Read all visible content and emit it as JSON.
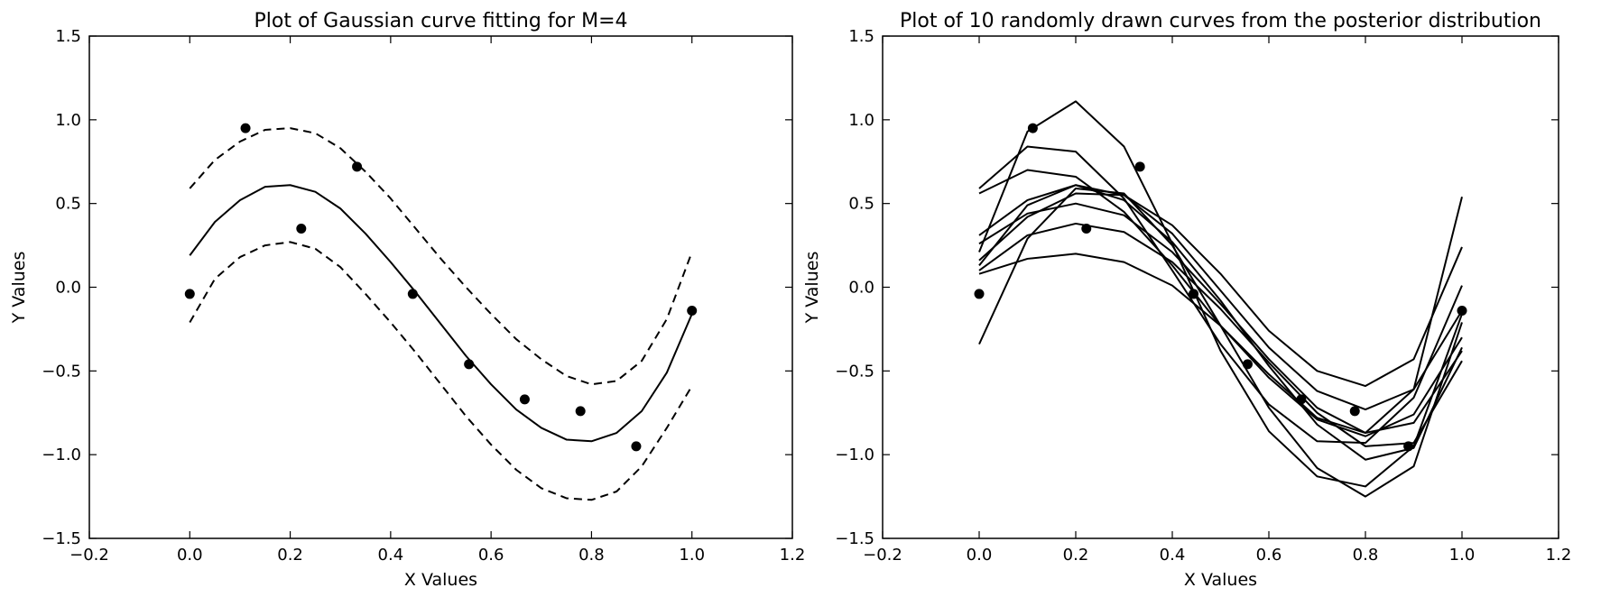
{
  "chart_data": [
    {
      "type": "line",
      "title": "Plot of Gaussian curve fitting for M=4",
      "xlabel": "X Values",
      "ylabel": "Y Values",
      "xlim": [
        -0.2,
        1.2
      ],
      "ylim": [
        -1.5,
        1.5
      ],
      "xticks": [
        -0.2,
        0.0,
        0.2,
        0.4,
        0.6,
        0.8,
        1.0,
        1.2
      ],
      "yticks": [
        -1.5,
        -1.0,
        -0.5,
        0.0,
        0.5,
        1.0,
        1.5
      ],
      "x_tick_labels": [
        "−0.2",
        "0.0",
        "0.2",
        "0.4",
        "0.6",
        "0.8",
        "1.0",
        "1.2"
      ],
      "y_tick_labels": [
        "−1.5",
        "−1.0",
        "−0.5",
        "0.0",
        "0.5",
        "1.0",
        "1.5"
      ],
      "grid": false,
      "points": {
        "x": [
          0.0,
          0.111,
          0.222,
          0.333,
          0.444,
          0.556,
          0.667,
          0.778,
          0.889,
          1.0
        ],
        "y": [
          -0.04,
          0.95,
          0.35,
          0.72,
          -0.04,
          -0.46,
          -0.67,
          -0.74,
          -0.95,
          -0.14
        ]
      },
      "series": [
        {
          "style": "solid",
          "x": [
            0.0,
            0.05,
            0.1,
            0.15,
            0.2,
            0.25,
            0.3,
            0.35,
            0.4,
            0.45,
            0.5,
            0.55,
            0.6,
            0.65,
            0.7,
            0.75,
            0.8,
            0.85,
            0.9,
            0.95,
            1.0
          ],
          "y": [
            0.19,
            0.39,
            0.52,
            0.6,
            0.61,
            0.57,
            0.47,
            0.32,
            0.15,
            -0.03,
            -0.22,
            -0.41,
            -0.58,
            -0.73,
            -0.84,
            -0.91,
            -0.92,
            -0.87,
            -0.74,
            -0.51,
            -0.16
          ]
        },
        {
          "style": "dashed",
          "x": [
            0.0,
            0.05,
            0.1,
            0.15,
            0.2,
            0.25,
            0.3,
            0.35,
            0.4,
            0.45,
            0.5,
            0.55,
            0.6,
            0.65,
            0.7,
            0.75,
            0.8,
            0.85,
            0.9,
            0.95,
            1.0
          ],
          "y": [
            0.59,
            0.76,
            0.87,
            0.94,
            0.95,
            0.92,
            0.83,
            0.69,
            0.53,
            0.35,
            0.17,
            0.0,
            -0.16,
            -0.31,
            -0.43,
            -0.53,
            -0.58,
            -0.56,
            -0.44,
            -0.19,
            0.21
          ]
        },
        {
          "style": "dashed",
          "x": [
            0.0,
            0.05,
            0.1,
            0.15,
            0.2,
            0.25,
            0.3,
            0.35,
            0.4,
            0.45,
            0.5,
            0.55,
            0.6,
            0.65,
            0.7,
            0.75,
            0.8,
            0.85,
            0.9,
            0.95,
            1.0
          ],
          "y": [
            -0.21,
            0.05,
            0.18,
            0.25,
            0.27,
            0.23,
            0.12,
            -0.04,
            -0.21,
            -0.39,
            -0.58,
            -0.77,
            -0.94,
            -1.09,
            -1.2,
            -1.26,
            -1.27,
            -1.22,
            -1.07,
            -0.84,
            -0.59
          ]
        }
      ]
    },
    {
      "type": "line",
      "title": "Plot of 10 randomly drawn curves from the posterior distribution",
      "xlabel": "X Values",
      "ylabel": "Y Values",
      "xlim": [
        -0.2,
        1.2
      ],
      "ylim": [
        -1.5,
        1.5
      ],
      "xticks": [
        -0.2,
        0.0,
        0.2,
        0.4,
        0.6,
        0.8,
        1.0,
        1.2
      ],
      "yticks": [
        -1.5,
        -1.0,
        -0.5,
        0.0,
        0.5,
        1.0,
        1.5
      ],
      "x_tick_labels": [
        "−0.2",
        "0.0",
        "0.2",
        "0.4",
        "0.6",
        "0.8",
        "1.0",
        "1.2"
      ],
      "y_tick_labels": [
        "−1.5",
        "−1.0",
        "−0.5",
        "0.0",
        "0.5",
        "1.0",
        "1.5"
      ],
      "grid": false,
      "points": {
        "x": [
          0.0,
          0.111,
          0.222,
          0.333,
          0.444,
          0.556,
          0.667,
          0.778,
          0.889,
          1.0
        ],
        "y": [
          -0.04,
          0.95,
          0.35,
          0.72,
          -0.04,
          -0.46,
          -0.67,
          -0.74,
          -0.95,
          -0.14
        ]
      },
      "series": [
        {
          "x": [
            0.0,
            0.1,
            0.2,
            0.3,
            0.4,
            0.5,
            0.6,
            0.7,
            0.8,
            0.9,
            1.0
          ],
          "y": [
            0.21,
            0.93,
            1.11,
            0.84,
            0.26,
            -0.38,
            -0.86,
            -1.13,
            -1.19,
            -0.95,
            -0.16
          ]
        },
        {
          "x": [
            0.0,
            0.1,
            0.2,
            0.3,
            0.4,
            0.5,
            0.6,
            0.7,
            0.8,
            0.9,
            1.0
          ],
          "y": [
            -0.34,
            0.29,
            0.59,
            0.56,
            0.25,
            -0.23,
            -0.72,
            -1.08,
            -1.25,
            -1.07,
            -0.21
          ]
        },
        {
          "x": [
            0.0,
            0.1,
            0.2,
            0.3,
            0.4,
            0.5,
            0.6,
            0.7,
            0.8,
            0.9,
            1.0
          ],
          "y": [
            0.59,
            0.84,
            0.81,
            0.53,
            0.1,
            -0.34,
            -0.7,
            -0.92,
            -0.93,
            -0.66,
            0.01
          ]
        },
        {
          "x": [
            0.0,
            0.1,
            0.2,
            0.3,
            0.4,
            0.5,
            0.6,
            0.7,
            0.8,
            0.9,
            1.0
          ],
          "y": [
            0.56,
            0.7,
            0.66,
            0.45,
            0.13,
            -0.23,
            -0.54,
            -0.79,
            -0.89,
            -0.76,
            -0.3
          ]
        },
        {
          "x": [
            0.0,
            0.1,
            0.2,
            0.3,
            0.4,
            0.5,
            0.6,
            0.7,
            0.8,
            0.9,
            1.0
          ],
          "y": [
            0.31,
            0.52,
            0.61,
            0.55,
            0.32,
            -0.02,
            -0.36,
            -0.62,
            -0.73,
            -0.61,
            -0.14
          ]
        },
        {
          "x": [
            0.0,
            0.1,
            0.2,
            0.3,
            0.4,
            0.5,
            0.6,
            0.7,
            0.8,
            0.9,
            1.0
          ],
          "y": [
            0.13,
            0.49,
            0.61,
            0.52,
            0.27,
            -0.08,
            -0.47,
            -0.82,
            -1.03,
            -0.96,
            -0.36
          ]
        },
        {
          "x": [
            0.0,
            0.1,
            0.2,
            0.3,
            0.4,
            0.5,
            0.6,
            0.7,
            0.8,
            0.9,
            1.0
          ],
          "y": [
            0.26,
            0.44,
            0.5,
            0.43,
            0.21,
            -0.1,
            -0.43,
            -0.72,
            -0.87,
            -0.81,
            -0.38
          ]
        },
        {
          "x": [
            0.0,
            0.1,
            0.2,
            0.3,
            0.4,
            0.5,
            0.6,
            0.7,
            0.8,
            0.9,
            1.0
          ],
          "y": [
            0.1,
            0.31,
            0.38,
            0.33,
            0.15,
            -0.13,
            -0.45,
            -0.75,
            -0.95,
            -0.93,
            -0.44
          ]
        },
        {
          "x": [
            0.0,
            0.1,
            0.2,
            0.3,
            0.4,
            0.5,
            0.6,
            0.7,
            0.8,
            0.9,
            1.0
          ],
          "y": [
            0.16,
            0.42,
            0.56,
            0.55,
            0.37,
            0.08,
            -0.26,
            -0.5,
            -0.59,
            -0.43,
            0.24
          ]
        },
        {
          "x": [
            0.0,
            0.1,
            0.2,
            0.3,
            0.4,
            0.5,
            0.6,
            0.7,
            0.8,
            0.9,
            1.0
          ],
          "y": [
            0.08,
            0.17,
            0.2,
            0.15,
            0.01,
            -0.23,
            -0.52,
            -0.78,
            -0.87,
            -0.61,
            0.54
          ]
        }
      ]
    }
  ]
}
